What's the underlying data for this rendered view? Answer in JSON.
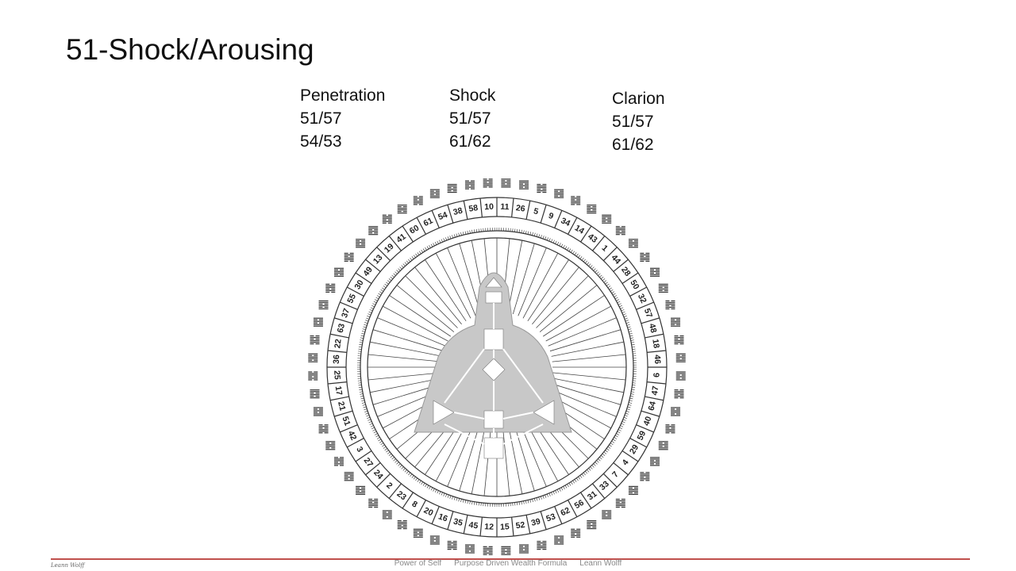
{
  "title": "51-Shock/Arousing",
  "columns": [
    {
      "heading": "Penetration",
      "lines": [
        "51/57",
        "54/53"
      ]
    },
    {
      "heading": "Shock",
      "lines": [
        "51/57",
        "61/62"
      ]
    },
    {
      "heading": "Clarion",
      "lines": [
        "51/57",
        "61/62"
      ]
    }
  ],
  "wheel": {
    "gates": [
      10,
      11,
      26,
      5,
      9,
      34,
      14,
      43,
      1,
      44,
      28,
      50,
      32,
      57,
      48,
      18,
      46,
      6,
      47,
      64,
      40,
      59,
      29,
      4,
      7,
      33,
      31,
      56,
      62,
      53,
      39,
      52,
      15,
      12,
      45,
      35,
      16,
      20,
      8,
      23,
      2,
      24,
      27,
      3,
      42,
      51,
      21,
      17,
      25,
      36,
      22,
      63,
      37,
      55,
      30,
      49,
      13,
      19,
      41,
      60,
      61,
      54,
      38,
      58
    ]
  },
  "footer": {
    "logo": "Leann Wolff",
    "items": [
      "Power of Self",
      "Purpose Driven Wealth Formula",
      "Leann Wolff"
    ]
  }
}
